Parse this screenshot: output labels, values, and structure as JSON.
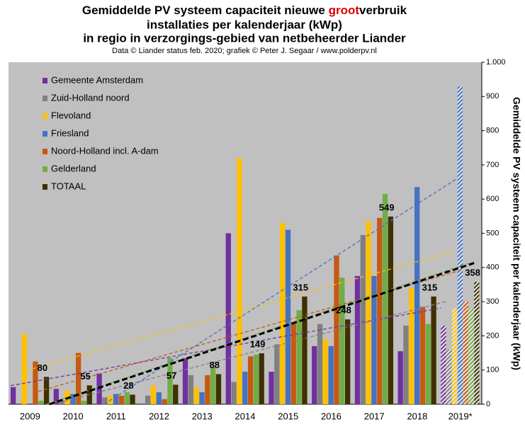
{
  "chart_data": {
    "type": "bar",
    "title_parts": [
      "Gemiddelde PV systeem capaciteit nieuwe ",
      "groot",
      "verbruik"
    ],
    "title_line2": "installaties per kalenderjaar (kWp)",
    "title_line3": "in regio in verzorgings-gebied van netbeheerder Liander",
    "subtitle": "Data © Liander status feb. 2020; grafiek © Peter J. Segaar / www.polderpv.nl",
    "y_label": "Gemiddelde PV systeem capaciteit per kalenderjaar (kWp)",
    "categories": [
      "2009",
      "2010",
      "2011",
      "2012",
      "2013",
      "2014",
      "2015",
      "2016",
      "2017",
      "2018",
      "2019*"
    ],
    "series": [
      {
        "name": "Gemeente Amsterdam",
        "color": "#7030a0",
        "values": [
          50,
          45,
          90,
          0,
          135,
          500,
          95,
          170,
          375,
          155,
          230
        ]
      },
      {
        "name": "Zuid-Holland noord",
        "color": "#808080",
        "values": [
          0,
          10,
          20,
          25,
          85,
          65,
          175,
          235,
          495,
          230,
          160
        ]
      },
      {
        "name": "Flevoland",
        "color": "#ffc000",
        "values": [
          205,
          40,
          25,
          55,
          50,
          720,
          530,
          190,
          535,
          340,
          280
        ]
      },
      {
        "name": "Friesland",
        "color": "#4472c4",
        "values": [
          0,
          30,
          30,
          35,
          35,
          95,
          510,
          170,
          375,
          635,
          930
        ]
      },
      {
        "name": "Noord-Holland incl. A-dam",
        "color": "#c55a11",
        "values": [
          125,
          150,
          25,
          15,
          85,
          140,
          240,
          435,
          545,
          285,
          300
        ]
      },
      {
        "name": "Gelderland",
        "color": "#70ad47",
        "values": [
          10,
          10,
          35,
          135,
          110,
          145,
          275,
          370,
          615,
          235,
          280
        ]
      },
      {
        "name": "TOTAAL",
        "color": "#3f3000",
        "values": [
          80,
          55,
          28,
          57,
          88,
          149,
          315,
          248,
          549,
          315,
          358
        ],
        "labels": true
      }
    ],
    "ylim": [
      0,
      1000
    ],
    "yticks": [
      0,
      100,
      200,
      300,
      400,
      500,
      600,
      700,
      800,
      900,
      {
        "value": 1000,
        "label": "1.000"
      }
    ],
    "trendlines": true,
    "hatch": "last",
    "legend": "top-left"
  }
}
